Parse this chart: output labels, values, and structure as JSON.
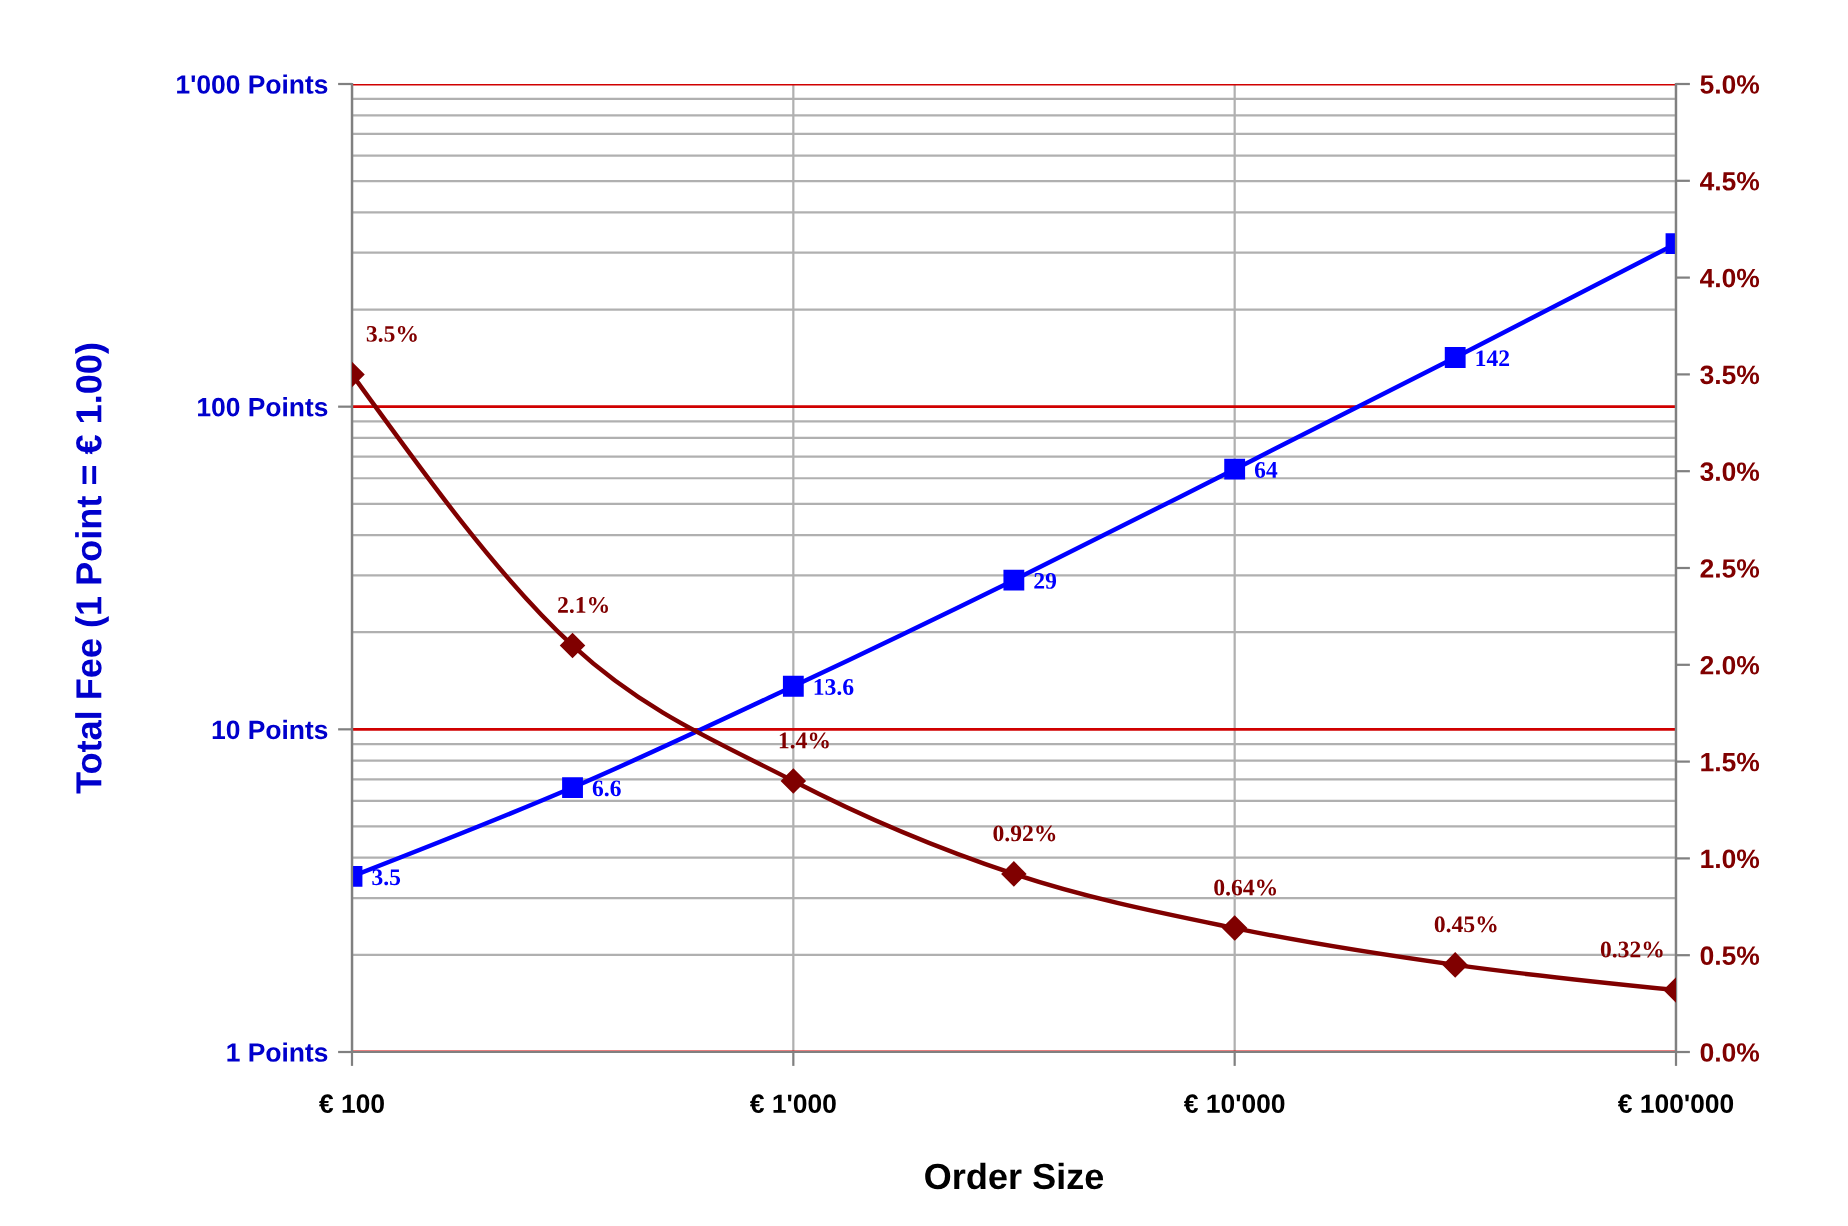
{
  "chart_data": {
    "type": "line",
    "xlabel": "Order Size",
    "ylabel": "Total Fee (1 Point = € 1.00)",
    "x": [
      100,
      316,
      1000,
      3160,
      10000,
      31600,
      100000
    ],
    "log": "xy",
    "grid": true,
    "xlim": [
      100,
      100000
    ],
    "xticks": [
      {
        "value": 100,
        "label": "€ 100"
      },
      {
        "value": 1000,
        "label": "€ 1'000"
      },
      {
        "value": 10000,
        "label": "€ 10'000"
      },
      {
        "value": 100000,
        "label": "€ 100'000"
      }
    ],
    "ylim": [
      1,
      1000
    ],
    "yticks": [
      {
        "value": 1,
        "label": "1 Points"
      },
      {
        "value": 10,
        "label": "10 Points"
      },
      {
        "value": 100,
        "label": "100 Points"
      },
      {
        "value": 1000,
        "label": "1'000 Points"
      }
    ],
    "y2lim": [
      0,
      5
    ],
    "y2ticks": [
      {
        "value": 0,
        "label": "0.0%"
      },
      {
        "value": 0.5,
        "label": "0.5%"
      },
      {
        "value": 1,
        "label": "1.0%"
      },
      {
        "value": 1.5,
        "label": "1.5%"
      },
      {
        "value": 2,
        "label": "2.0%"
      },
      {
        "value": 2.5,
        "label": "2.5%"
      },
      {
        "value": 3,
        "label": "3.0%"
      },
      {
        "value": 3.5,
        "label": "3.5%"
      },
      {
        "value": 4,
        "label": "4.0%"
      },
      {
        "value": 4.5,
        "label": "4.5%"
      },
      {
        "value": 5,
        "label": "5.0%"
      }
    ],
    "series": [
      {
        "color": "#0000ff",
        "marker": "square",
        "values": [
          3.5,
          6.6,
          13.6,
          29,
          64,
          142,
          320
        ],
        "value_labels": [
          "3.5",
          "6.6",
          "13.6",
          "29",
          "64",
          "142",
          null
        ]
      },
      {
        "color": "#800000",
        "marker": "diamond",
        "axis": "y2",
        "values": [
          3.5,
          2.1,
          1.4,
          0.92,
          0.64,
          0.45,
          0.32
        ],
        "value_labels": [
          "3.5%",
          "2.1%",
          "1.4%",
          "0.92%",
          "0.64%",
          "0.45%",
          "0.32%"
        ]
      }
    ]
  }
}
